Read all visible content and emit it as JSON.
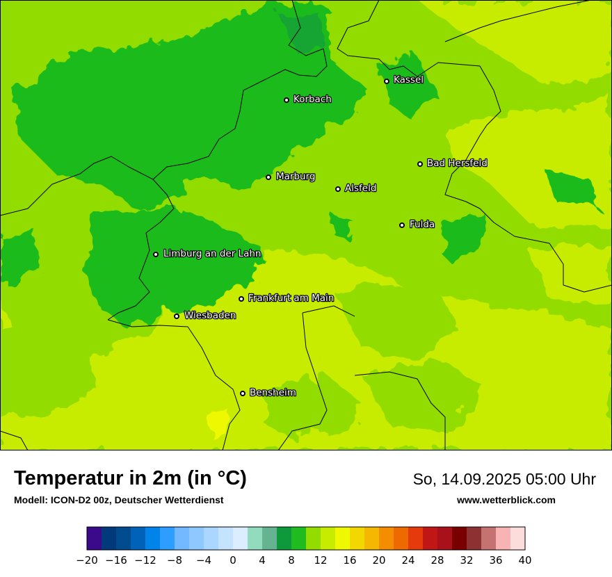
{
  "map": {
    "cities": [
      {
        "name": "Kassel"
      },
      {
        "name": "Korbach"
      },
      {
        "name": "Bad Hersfeld"
      },
      {
        "name": "Marburg"
      },
      {
        "name": "Alsfeld"
      },
      {
        "name": "Fulda"
      },
      {
        "name": "Limburg an der Lahn"
      },
      {
        "name": "Frankfurt am Main"
      },
      {
        "name": "Wiesbaden"
      },
      {
        "name": "Bensheim"
      }
    ]
  },
  "header": {
    "title": "Temperatur in 2m (in °C)",
    "subtitle": "Modell: ICON-D2 00z, Deutscher Wetterdienst",
    "datetime": "So, 14.09.2025 05:00 Uhr",
    "website": "www.wetterblick.com"
  },
  "legend": {
    "unit": "°C",
    "range": [
      -20,
      40
    ],
    "step": 2,
    "tick_labels": [
      "−20",
      "−16",
      "−12",
      "−8",
      "−4",
      "0",
      "4",
      "8",
      "12",
      "16",
      "20",
      "24",
      "28",
      "32",
      "36",
      "40"
    ],
    "colors": [
      "#3a0a8a",
      "#003a7a",
      "#004a8e",
      "#0062b8",
      "#0084ea",
      "#2d9dff",
      "#72b9ff",
      "#8ec8ff",
      "#aad6ff",
      "#c4e3ff",
      "#dcedff",
      "#93dbbf",
      "#65b391",
      "#0e9a3c",
      "#1fbb1f",
      "#92dc00",
      "#c8ec00",
      "#eef800",
      "#f2d800",
      "#f5b800",
      "#f48e00",
      "#ee6a00",
      "#e43a0c",
      "#c01616",
      "#a8101a",
      "#7a0000",
      "#8c3232",
      "#c47272",
      "#f8b4b4",
      "#fddcdc"
    ]
  }
}
